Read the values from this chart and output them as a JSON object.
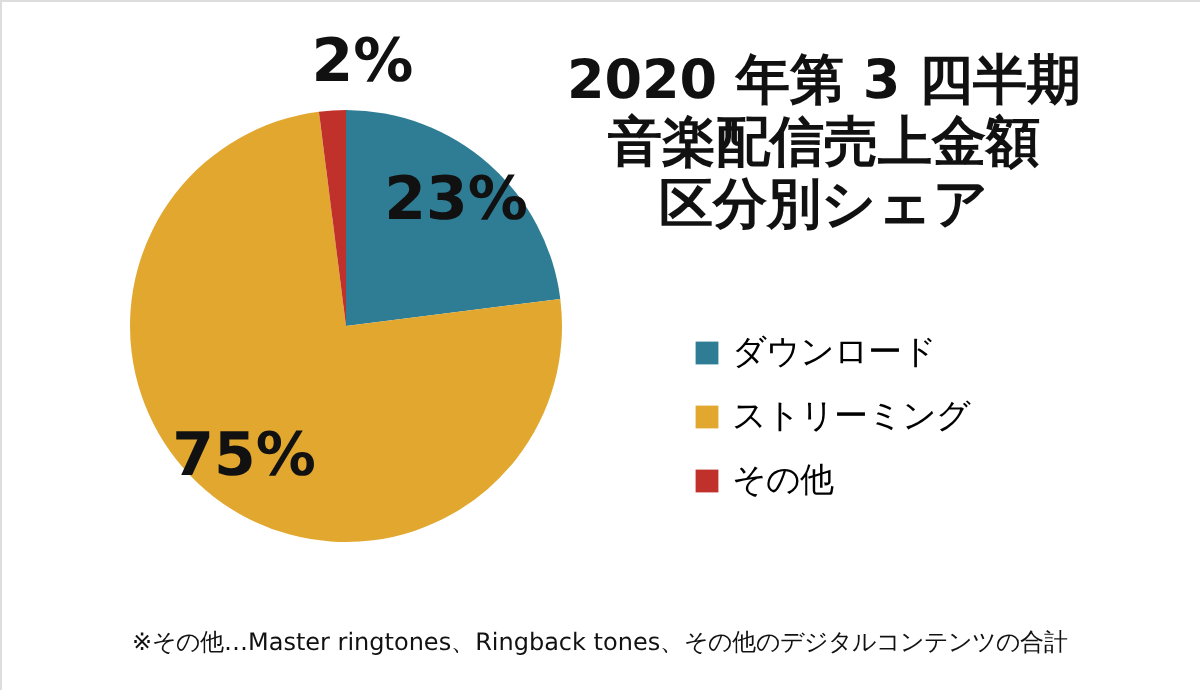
{
  "chart_data": {
    "type": "pie",
    "title": "2020 年第 3 四半期音楽配信売上金額区分別シェア",
    "categories": [
      "ダウンロード",
      "ストリーミング",
      "その他"
    ],
    "values": [
      23,
      75,
      2
    ],
    "colors": [
      "#2e7d94",
      "#e2a72e",
      "#c0312b"
    ],
    "value_labels": [
      "23%",
      "75%",
      "2%"
    ],
    "legend": "right",
    "annotations": [
      "※その他…Master ringtones、Ringback tones、その他のデジタルコンテンツの合計"
    ]
  }
}
